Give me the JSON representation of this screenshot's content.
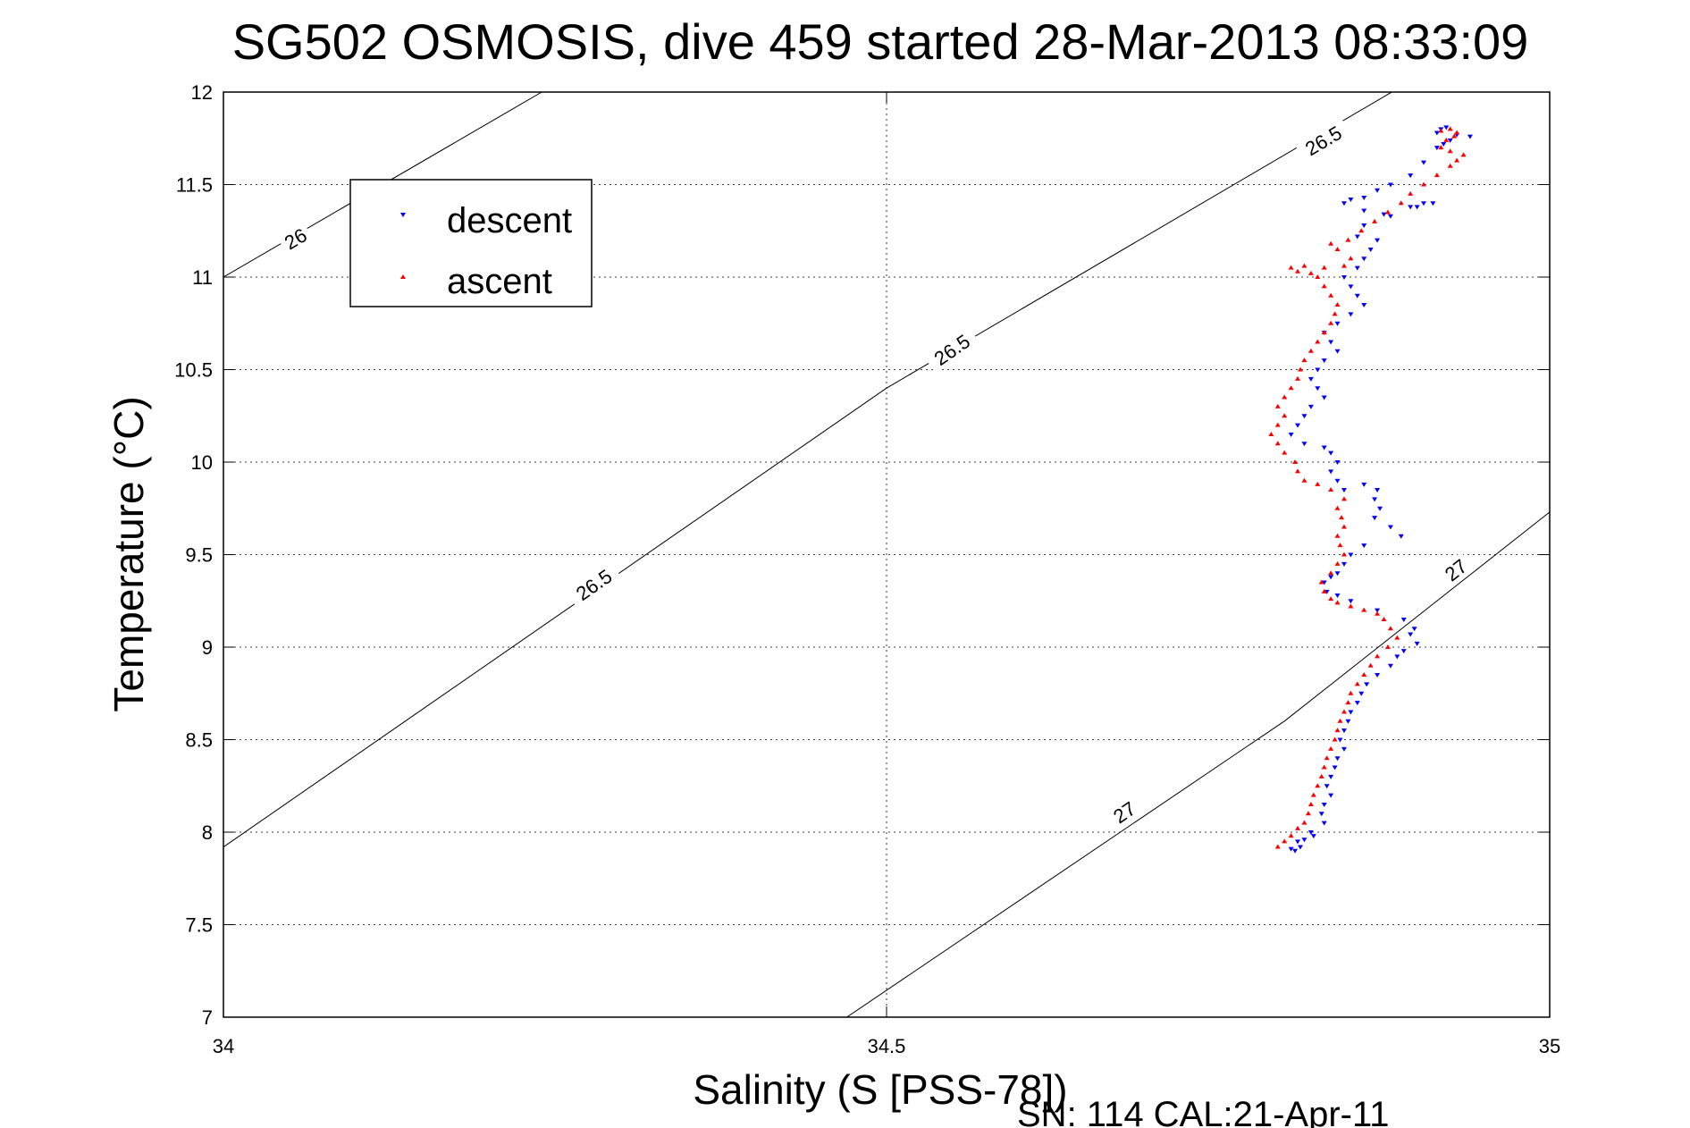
{
  "chart_data": {
    "type": "scatter",
    "title": "SG502 OSMOSIS, dive 459 started 28-Mar-2013 08:33:09",
    "xlabel": "Salinity (S [PSS-78])",
    "ylabel": "Temperature (°C)",
    "xlim": [
      34,
      35
    ],
    "ylim": [
      7,
      12
    ],
    "xticks": [
      34,
      34.5,
      35
    ],
    "xtick_labels": [
      "34",
      "34.5",
      "35"
    ],
    "yticks": [
      7,
      7.5,
      8,
      8.5,
      9,
      9.5,
      10,
      10.5,
      11,
      11.5,
      12
    ],
    "ytick_labels": [
      "7",
      "7.5",
      "8",
      "8.5",
      "9",
      "9.5",
      "10",
      "10.5",
      "11",
      "11.5",
      "12"
    ],
    "grid": true,
    "legend_position": "top-left",
    "footer": "SN: 114  CAL:21-Apr-11",
    "contours": [
      {
        "label": "26",
        "points": [
          [
            34.0,
            11.0
          ],
          [
            34.24,
            12.0
          ]
        ],
        "label_points": [
          [
            34.055,
            11.2
          ]
        ]
      },
      {
        "label": "26.5",
        "points": [
          [
            34.0,
            7.92
          ],
          [
            34.5,
            10.4
          ],
          [
            35.0,
            12.5
          ]
        ],
        "label_points": [
          [
            34.28,
            9.33
          ],
          [
            34.55,
            10.6
          ],
          [
            34.83,
            11.73
          ]
        ]
      },
      {
        "label": "27",
        "points": [
          [
            34.47,
            7.0
          ],
          [
            34.8,
            8.6
          ],
          [
            35.0,
            9.73
          ]
        ],
        "label_points": [
          [
            34.68,
            8.1
          ],
          [
            34.93,
            9.41
          ]
        ]
      }
    ],
    "series": [
      {
        "name": "descent",
        "marker": "triangle-down",
        "color": "#0000ff",
        "points": [
          [
            34.922,
            11.81
          ],
          [
            34.918,
            11.8
          ],
          [
            34.915,
            11.78
          ],
          [
            34.93,
            11.77
          ],
          [
            34.94,
            11.76
          ],
          [
            34.925,
            11.74
          ],
          [
            34.92,
            11.72
          ],
          [
            34.915,
            11.7
          ],
          [
            34.905,
            11.62
          ],
          [
            34.895,
            11.55
          ],
          [
            34.88,
            11.5
          ],
          [
            34.87,
            11.47
          ],
          [
            34.86,
            11.43
          ],
          [
            34.85,
            11.42
          ],
          [
            34.845,
            11.4
          ],
          [
            34.86,
            11.36
          ],
          [
            34.88,
            11.33
          ],
          [
            34.9,
            11.38
          ],
          [
            34.912,
            11.4
          ],
          [
            34.905,
            11.4
          ],
          [
            34.895,
            11.38
          ],
          [
            34.875,
            11.34
          ],
          [
            34.86,
            11.28
          ],
          [
            34.855,
            11.22
          ],
          [
            34.87,
            11.2
          ],
          [
            34.865,
            11.15
          ],
          [
            34.86,
            11.1
          ],
          [
            34.855,
            11.05
          ],
          [
            34.845,
            11.0
          ],
          [
            34.85,
            10.95
          ],
          [
            34.855,
            10.9
          ],
          [
            34.86,
            10.85
          ],
          [
            34.85,
            10.8
          ],
          [
            34.84,
            10.75
          ],
          [
            34.83,
            10.7
          ],
          [
            34.835,
            10.65
          ],
          [
            34.84,
            10.6
          ],
          [
            34.83,
            10.55
          ],
          [
            34.825,
            10.5
          ],
          [
            34.82,
            10.45
          ],
          [
            34.825,
            10.4
          ],
          [
            34.83,
            10.35
          ],
          [
            34.82,
            10.3
          ],
          [
            34.815,
            10.25
          ],
          [
            34.81,
            10.2
          ],
          [
            34.805,
            10.15
          ],
          [
            34.815,
            10.1
          ],
          [
            34.83,
            10.08
          ],
          [
            34.835,
            10.05
          ],
          [
            34.84,
            10.0
          ],
          [
            34.835,
            9.95
          ],
          [
            34.84,
            9.9
          ],
          [
            34.845,
            9.85
          ],
          [
            34.86,
            9.88
          ],
          [
            34.87,
            9.85
          ],
          [
            34.868,
            9.8
          ],
          [
            34.872,
            9.75
          ],
          [
            34.868,
            9.7
          ],
          [
            34.88,
            9.65
          ],
          [
            34.888,
            9.6
          ],
          [
            34.86,
            9.55
          ],
          [
            34.85,
            9.5
          ],
          [
            34.845,
            9.45
          ],
          [
            34.84,
            9.4
          ],
          [
            34.835,
            9.38
          ],
          [
            34.83,
            9.35
          ],
          [
            34.832,
            9.3
          ],
          [
            34.84,
            9.28
          ],
          [
            34.85,
            9.25
          ],
          [
            34.87,
            9.2
          ],
          [
            34.89,
            9.15
          ],
          [
            34.898,
            9.1
          ],
          [
            34.895,
            9.07
          ],
          [
            34.9,
            9.02
          ],
          [
            34.89,
            8.98
          ],
          [
            34.885,
            8.95
          ],
          [
            34.88,
            8.9
          ],
          [
            34.87,
            8.85
          ],
          [
            34.862,
            8.8
          ],
          [
            34.858,
            8.75
          ],
          [
            34.855,
            8.7
          ],
          [
            34.85,
            8.65
          ],
          [
            34.848,
            8.6
          ],
          [
            34.845,
            8.55
          ],
          [
            34.842,
            8.5
          ],
          [
            34.845,
            8.45
          ],
          [
            34.84,
            8.4
          ],
          [
            34.838,
            8.35
          ],
          [
            34.835,
            8.3
          ],
          [
            34.832,
            8.25
          ],
          [
            34.835,
            8.2
          ],
          [
            34.83,
            8.15
          ],
          [
            34.828,
            8.1
          ],
          [
            34.83,
            8.05
          ],
          [
            34.82,
            8.0
          ],
          [
            34.815,
            7.96
          ],
          [
            34.812,
            7.92
          ],
          [
            34.808,
            7.9
          ],
          [
            34.805,
            7.91
          ],
          [
            34.81,
            7.95
          ],
          [
            34.822,
            7.98
          ]
        ]
      },
      {
        "name": "ascent",
        "marker": "triangle-up",
        "color": "#ff0000",
        "points": [
          [
            34.795,
            7.92
          ],
          [
            34.8,
            7.95
          ],
          [
            34.805,
            7.98
          ],
          [
            34.81,
            8.02
          ],
          [
            34.815,
            8.05
          ],
          [
            34.818,
            8.1
          ],
          [
            34.82,
            8.15
          ],
          [
            34.822,
            8.2
          ],
          [
            34.825,
            8.25
          ],
          [
            34.828,
            8.3
          ],
          [
            34.83,
            8.35
          ],
          [
            34.832,
            8.4
          ],
          [
            34.835,
            8.45
          ],
          [
            34.838,
            8.5
          ],
          [
            34.84,
            8.55
          ],
          [
            34.842,
            8.6
          ],
          [
            34.845,
            8.65
          ],
          [
            34.848,
            8.7
          ],
          [
            34.85,
            8.75
          ],
          [
            34.855,
            8.8
          ],
          [
            34.86,
            8.85
          ],
          [
            34.865,
            8.9
          ],
          [
            34.87,
            8.95
          ],
          [
            34.878,
            9.0
          ],
          [
            34.885,
            9.05
          ],
          [
            34.88,
            9.1
          ],
          [
            34.875,
            9.15
          ],
          [
            34.87,
            9.18
          ],
          [
            34.86,
            9.2
          ],
          [
            34.85,
            9.22
          ],
          [
            34.84,
            9.24
          ],
          [
            34.835,
            9.26
          ],
          [
            34.83,
            9.3
          ],
          [
            34.828,
            9.35
          ],
          [
            34.835,
            9.4
          ],
          [
            34.84,
            9.45
          ],
          [
            34.845,
            9.5
          ],
          [
            34.842,
            9.55
          ],
          [
            34.84,
            9.6
          ],
          [
            34.845,
            9.65
          ],
          [
            34.843,
            9.7
          ],
          [
            34.84,
            9.75
          ],
          [
            34.845,
            9.8
          ],
          [
            34.835,
            9.85
          ],
          [
            34.825,
            9.88
          ],
          [
            34.815,
            9.9
          ],
          [
            34.81,
            9.95
          ],
          [
            34.808,
            10.0
          ],
          [
            34.8,
            10.05
          ],
          [
            34.795,
            10.1
          ],
          [
            34.79,
            10.15
          ],
          [
            34.795,
            10.2
          ],
          [
            34.8,
            10.25
          ],
          [
            34.795,
            10.3
          ],
          [
            34.8,
            10.35
          ],
          [
            34.805,
            10.4
          ],
          [
            34.81,
            10.45
          ],
          [
            34.812,
            10.5
          ],
          [
            34.815,
            10.55
          ],
          [
            34.82,
            10.6
          ],
          [
            34.825,
            10.65
          ],
          [
            34.83,
            10.7
          ],
          [
            34.835,
            10.75
          ],
          [
            34.838,
            10.8
          ],
          [
            34.84,
            10.85
          ],
          [
            34.835,
            10.9
          ],
          [
            34.83,
            10.95
          ],
          [
            34.825,
            11.0
          ],
          [
            34.82,
            11.02
          ],
          [
            34.81,
            11.03
          ],
          [
            34.805,
            11.05
          ],
          [
            34.815,
            11.06
          ],
          [
            34.83,
            11.05
          ],
          [
            34.845,
            11.06
          ],
          [
            34.85,
            11.1
          ],
          [
            34.84,
            11.15
          ],
          [
            34.835,
            11.18
          ],
          [
            34.848,
            11.2
          ],
          [
            34.858,
            11.25
          ],
          [
            34.868,
            11.3
          ],
          [
            34.878,
            11.35
          ],
          [
            34.888,
            11.4
          ],
          [
            34.895,
            11.45
          ],
          [
            34.905,
            11.5
          ],
          [
            34.915,
            11.55
          ],
          [
            34.925,
            11.6
          ],
          [
            34.93,
            11.63
          ],
          [
            34.935,
            11.66
          ],
          [
            34.925,
            11.68
          ],
          [
            34.918,
            11.7
          ],
          [
            34.922,
            11.74
          ],
          [
            34.928,
            11.76
          ],
          [
            34.93,
            11.78
          ],
          [
            34.925,
            11.8
          ],
          [
            34.918,
            11.79
          ]
        ]
      }
    ]
  }
}
